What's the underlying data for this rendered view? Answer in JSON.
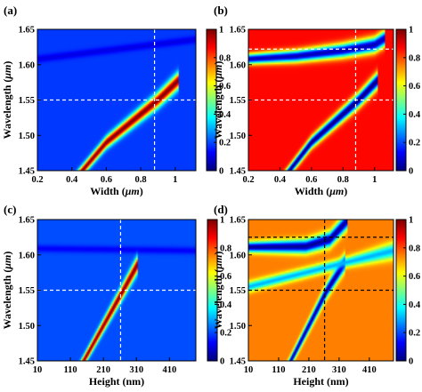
{
  "chart_data": [
    {
      "type": "heatmap",
      "panel_label": "(a)",
      "xlabel_prefix": "Width (",
      "xlabel_unit": "μm",
      "xlabel_suffix": ")",
      "ylabel_prefix": "Wavelength (",
      "ylabel_unit": "μm",
      "ylabel_suffix": ")",
      "xlim": [
        0.2,
        1.12
      ],
      "ylim": [
        1.45,
        1.65
      ],
      "xticks": [
        0.2,
        0.4,
        0.6,
        0.8,
        1.0
      ],
      "xtick_labels": [
        "0.2",
        "0.4",
        "0.6",
        "0.8",
        "1"
      ],
      "yticks": [
        1.45,
        1.5,
        1.55,
        1.6,
        1.65
      ],
      "ytick_labels": [
        "1.45",
        "1.50",
        "1.55",
        "1.60",
        "1.65"
      ],
      "colorbar": {
        "range": [
          0,
          1
        ],
        "ticks": [
          0,
          0.2,
          0.4,
          0.6,
          0.8,
          1
        ],
        "tick_labels": [
          "0",
          "0.2",
          "0.4",
          "0.6",
          "0.8",
          "1"
        ],
        "colormap": "jet"
      },
      "background_value": 0.18,
      "features": [
        {
          "kind": "resonance",
          "polarity": "peak",
          "peak_value": 1.0,
          "path_x": [
            0.46,
            0.6,
            0.75,
            0.9,
            1.02
          ],
          "path_y": [
            1.45,
            1.49,
            1.52,
            1.55,
            1.578
          ]
        },
        {
          "kind": "faint-line",
          "x": [
            0.2,
            1.0
          ],
          "y": [
            1.608,
            1.632
          ],
          "value": 0.12
        }
      ],
      "guides": {
        "vertical_x": 0.88,
        "horizontal_y": 1.55,
        "line_color": "#ffffff"
      }
    },
    {
      "type": "heatmap",
      "panel_label": "(b)",
      "xlabel_prefix": "Width (",
      "xlabel_unit": "μm",
      "xlabel_suffix": ")",
      "ylabel_prefix": "Wavelength (",
      "ylabel_unit": "μm",
      "ylabel_suffix": ")",
      "xlim": [
        0.2,
        1.12
      ],
      "ylim": [
        1.45,
        1.65
      ],
      "xticks": [
        0.2,
        0.4,
        0.6,
        0.8,
        1.0
      ],
      "xtick_labels": [
        "0.2",
        "0.4",
        "0.6",
        "0.8",
        "1"
      ],
      "yticks": [
        1.45,
        1.5,
        1.55,
        1.6,
        1.65
      ],
      "ytick_labels": [
        "1.45",
        "1.50",
        "1.55",
        "1.60",
        "1.65"
      ],
      "colorbar": {
        "range": [
          0,
          1
        ],
        "ticks": [
          0,
          0.2,
          0.4,
          0.6,
          0.8,
          1
        ],
        "tick_labels": [
          "0",
          "0.2",
          "0.4",
          "0.6",
          "0.8",
          "1"
        ],
        "colormap": "jet"
      },
      "background_value": 0.87,
      "features": [
        {
          "kind": "resonance",
          "polarity": "dip",
          "peak_value": 0.0,
          "path_x": [
            0.46,
            0.6,
            0.75,
            0.9,
            1.02
          ],
          "path_y": [
            1.45,
            1.49,
            1.52,
            1.55,
            1.578
          ]
        },
        {
          "kind": "resonance",
          "polarity": "dip",
          "peak_value": 0.05,
          "path_x": [
            0.2,
            0.5,
            0.8,
            1.0,
            1.07
          ],
          "path_y": [
            1.608,
            1.612,
            1.62,
            1.628,
            1.638
          ]
        }
      ],
      "guides": {
        "vertical_x": 0.88,
        "horizontal_y": [
          1.55,
          1.622
        ],
        "line_color": "#ffffff"
      }
    },
    {
      "type": "heatmap",
      "panel_label": "(c)",
      "xlabel": "Height (nm)",
      "ylabel_prefix": "Wavelength (",
      "ylabel_unit": "μm",
      "ylabel_suffix": ")",
      "xlim": [
        10,
        490
      ],
      "ylim": [
        1.45,
        1.65
      ],
      "xticks": [
        10,
        110,
        210,
        310,
        410
      ],
      "xtick_labels": [
        "10",
        "110",
        "210",
        "310",
        "410"
      ],
      "yticks": [
        1.45,
        1.5,
        1.55,
        1.6,
        1.65
      ],
      "ytick_labels": [
        "1.45",
        "1.50",
        "1.55",
        "1.60",
        "1.65"
      ],
      "colorbar": {
        "range": [
          0,
          1
        ],
        "ticks": [
          0,
          0.2,
          0.4,
          0.6,
          0.8,
          1
        ],
        "tick_labels": [
          "0",
          "0.2",
          "0.4",
          "0.6",
          "0.8",
          "1"
        ],
        "colormap": "jet"
      },
      "background_value": 0.2,
      "features": [
        {
          "kind": "resonance",
          "polarity": "peak",
          "peak_value": 1.0,
          "path_x": [
            150,
            210,
            270,
            315
          ],
          "path_y": [
            1.45,
            1.5,
            1.55,
            1.588
          ]
        },
        {
          "kind": "faint-line",
          "x": [
            10,
            490
          ],
          "y": [
            1.609,
            1.606
          ],
          "value": 0.12
        }
      ],
      "guides": {
        "vertical_x": 262,
        "horizontal_y": 1.55,
        "line_color": "#ffffff"
      }
    },
    {
      "type": "heatmap",
      "panel_label": "(d)",
      "xlabel": "Height (nm)",
      "ylabel_prefix": "Wavelength (",
      "ylabel_unit": "μm",
      "ylabel_suffix": ")",
      "xlim": [
        10,
        490
      ],
      "ylim": [
        1.45,
        1.65
      ],
      "xticks": [
        10,
        110,
        210,
        310,
        410
      ],
      "xtick_labels": [
        "10",
        "110",
        "210",
        "310",
        "410"
      ],
      "yticks": [
        1.45,
        1.5,
        1.55,
        1.6,
        1.65
      ],
      "ytick_labels": [
        "1.45",
        "1.50",
        "1.55",
        "1.60",
        "1.65"
      ],
      "colorbar": {
        "range": [
          0,
          1
        ],
        "ticks": [
          0,
          0.2,
          0.4,
          0.6,
          0.8,
          1
        ],
        "tick_labels": [
          "0",
          "0.2",
          "0.4",
          "0.6",
          "0.8",
          "1"
        ],
        "colormap": "jet"
      },
      "background_value": 0.75,
      "features": [
        {
          "kind": "resonance",
          "polarity": "dip",
          "peak_value": 0.02,
          "path_x": [
            150,
            210,
            270,
            330
          ],
          "path_y": [
            1.45,
            1.5,
            1.55,
            1.59
          ]
        },
        {
          "kind": "resonance",
          "polarity": "dip",
          "peak_value": 0.02,
          "path_x": [
            10,
            200,
            280,
            340
          ],
          "path_y": [
            1.611,
            1.612,
            1.622,
            1.65
          ]
        },
        {
          "kind": "resonance",
          "polarity": "dip",
          "peak_value": 0.3,
          "path_x": [
            340,
            490
          ],
          "path_y": [
            1.59,
            1.606
          ]
        }
      ],
      "guides": {
        "vertical_x": 262,
        "horizontal_y": [
          1.55,
          1.625
        ],
        "line_color": "#000000"
      }
    }
  ]
}
